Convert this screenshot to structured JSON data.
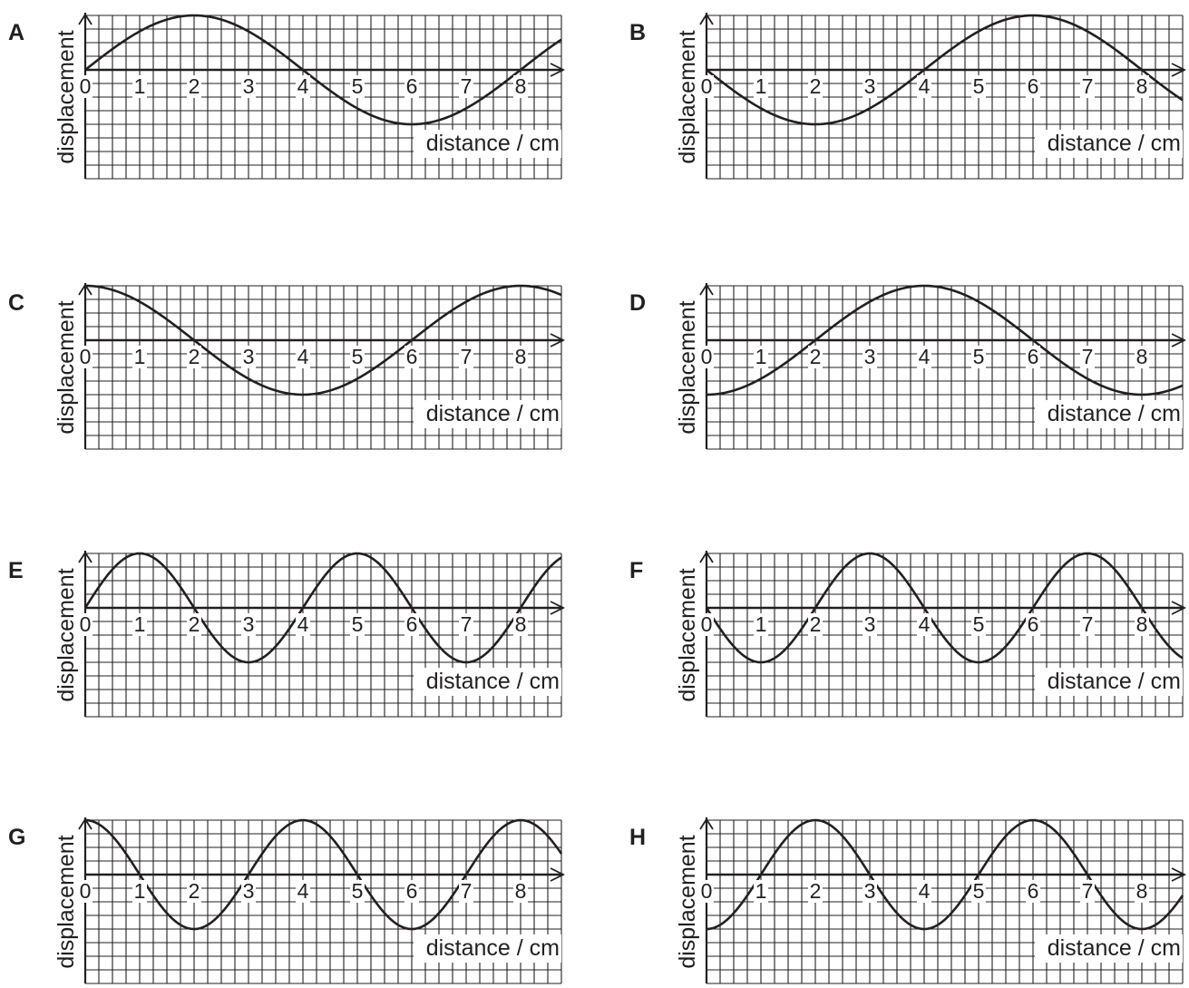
{
  "chart_data": [
    {
      "type": "line",
      "panel_label": "A",
      "ylabel": "displacement",
      "xlabel": "distance / cm",
      "xticks": [
        0,
        1,
        2,
        3,
        4,
        5,
        6,
        7,
        8
      ],
      "xlim": [
        0,
        8.75
      ],
      "ylim": [
        -2,
        1
      ],
      "grid": true,
      "wave": {
        "amplitude": 1,
        "wavelength": 8,
        "phase_offset_cm": 0,
        "form": "sine"
      }
    },
    {
      "type": "line",
      "panel_label": "B",
      "ylabel": "displacement",
      "xlabel": "distance / cm",
      "xticks": [
        0,
        1,
        2,
        3,
        4,
        5,
        6,
        7,
        8
      ],
      "xlim": [
        0,
        8.75
      ],
      "ylim": [
        -2,
        1
      ],
      "grid": true,
      "wave": {
        "amplitude": -1,
        "wavelength": 8,
        "phase_offset_cm": 0,
        "form": "sine"
      }
    },
    {
      "type": "line",
      "panel_label": "C",
      "ylabel": "displacement",
      "xlabel": "distance / cm",
      "xticks": [
        0,
        1,
        2,
        3,
        4,
        5,
        6,
        7,
        8
      ],
      "xlim": [
        0,
        8.75
      ],
      "ylim": [
        -2,
        1
      ],
      "grid": true,
      "wave": {
        "amplitude": 1,
        "wavelength": 8,
        "phase_offset_cm": 0,
        "form": "cosine"
      }
    },
    {
      "type": "line",
      "panel_label": "D",
      "ylabel": "displacement",
      "xlabel": "distance / cm",
      "xticks": [
        0,
        1,
        2,
        3,
        4,
        5,
        6,
        7,
        8
      ],
      "xlim": [
        0,
        8.75
      ],
      "ylim": [
        -2,
        1
      ],
      "grid": true,
      "wave": {
        "amplitude": -1,
        "wavelength": 8,
        "phase_offset_cm": 0,
        "form": "cosine"
      }
    },
    {
      "type": "line",
      "panel_label": "E",
      "ylabel": "displacement",
      "xlabel": "distance / cm",
      "xticks": [
        0,
        1,
        2,
        3,
        4,
        5,
        6,
        7,
        8
      ],
      "xlim": [
        0,
        8.75
      ],
      "ylim": [
        -2,
        1
      ],
      "grid": true,
      "wave": {
        "amplitude": 1,
        "wavelength": 4,
        "phase_offset_cm": 0,
        "form": "sine"
      }
    },
    {
      "type": "line",
      "panel_label": "F",
      "ylabel": "displacement",
      "xlabel": "distance / cm",
      "xticks": [
        0,
        1,
        2,
        3,
        4,
        5,
        6,
        7,
        8
      ],
      "xlim": [
        0,
        8.75
      ],
      "ylim": [
        -2,
        1
      ],
      "grid": true,
      "wave": {
        "amplitude": -1,
        "wavelength": 4,
        "phase_offset_cm": 0,
        "form": "sine"
      }
    },
    {
      "type": "line",
      "panel_label": "G",
      "ylabel": "displacement",
      "xlabel": "distance / cm",
      "xticks": [
        0,
        1,
        2,
        3,
        4,
        5,
        6,
        7,
        8
      ],
      "xlim": [
        0,
        8.75
      ],
      "ylim": [
        -2,
        1
      ],
      "grid": true,
      "wave": {
        "amplitude": 1,
        "wavelength": 4,
        "phase_offset_cm": 0,
        "form": "cosine"
      }
    },
    {
      "type": "line",
      "panel_label": "H",
      "ylabel": "displacement",
      "xlabel": "distance / cm",
      "xticks": [
        0,
        1,
        2,
        3,
        4,
        5,
        6,
        7,
        8
      ],
      "xlim": [
        0,
        8.75
      ],
      "ylim": [
        -2,
        1
      ],
      "grid": true,
      "wave": {
        "amplitude": -1,
        "wavelength": 4,
        "phase_offset_cm": 0,
        "form": "cosine"
      }
    }
  ],
  "colors": {
    "ink": "#231f20",
    "grid": "#231f20",
    "background": "#ffffff"
  }
}
